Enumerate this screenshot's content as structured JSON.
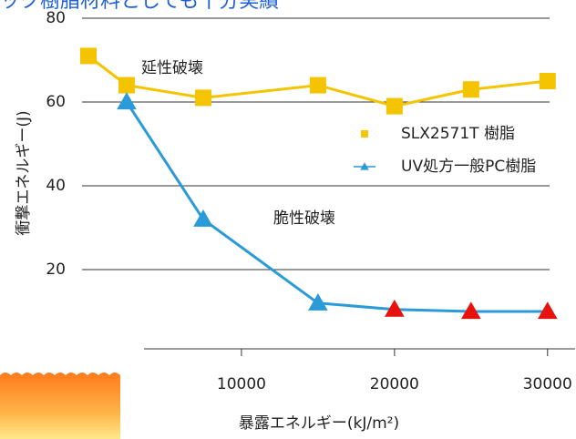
{
  "chart_data": {
    "type": "line",
    "title": "ック樹脂材料としても十分実績",
    "xlabel": "暴露エネルギー(kJ/m²)",
    "ylabel": "衝撃エネルギー(J)",
    "annotations": [
      "延性破壊",
      "脆性破壊"
    ],
    "xlim": [
      0,
      31800
    ],
    "xticks": [
      10000,
      20000,
      30000
    ],
    "ylim": [
      0,
      80
    ],
    "yticks": [
      20,
      40,
      60,
      80
    ],
    "grid": true,
    "series": [
      {
        "name": "SLX2571T 樹脂",
        "color": "#f5c400",
        "marker": "square",
        "x": [
          0,
          2500,
          7500,
          15000,
          20000,
          25000,
          30000
        ],
        "values": [
          71,
          64,
          61,
          64,
          59,
          63,
          65
        ]
      },
      {
        "name": "UV処方一般PC樹脂",
        "color": "#2a9ad8",
        "marker": "triangle",
        "point_colors": [
          "#2a9ad8",
          "#2a9ad8",
          "#2a9ad8",
          "#e8120c",
          "#e8120c",
          "#e8120c"
        ],
        "x": [
          2500,
          7500,
          15000,
          20000,
          25000,
          30000
        ],
        "values": [
          60,
          32,
          12,
          10.5,
          10,
          10
        ]
      }
    ]
  }
}
